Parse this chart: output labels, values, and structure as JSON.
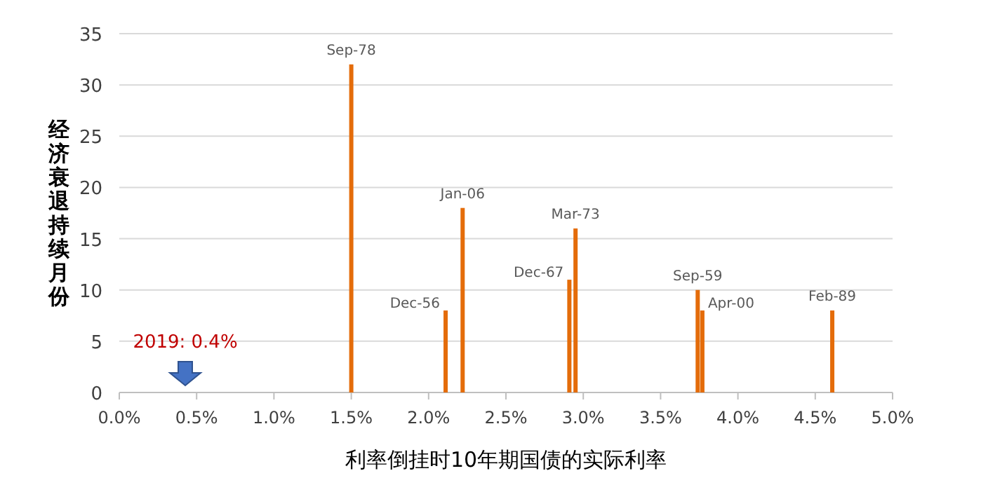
{
  "chart_data": {
    "type": "bar",
    "x": [
      1.5,
      2.11,
      2.22,
      2.91,
      2.95,
      3.74,
      3.77,
      4.61
    ],
    "values": [
      32,
      8,
      18,
      11,
      16,
      10,
      8,
      8
    ],
    "color": "#e46c0a",
    "xlim": [
      0,
      5
    ],
    "xticks": [
      {
        "value": 0,
        "label": "0.0%"
      },
      {
        "value": 0.5,
        "label": "0.5%"
      },
      {
        "value": 1,
        "label": "1.0%"
      },
      {
        "value": 1.5,
        "label": "1.5%"
      },
      {
        "value": 2,
        "label": "2.0%"
      },
      {
        "value": 2.5,
        "label": "2.5%"
      },
      {
        "value": 3,
        "label": "3.0%"
      },
      {
        "value": 3.5,
        "label": "3.5%"
      },
      {
        "value": 4,
        "label": "4.0%"
      },
      {
        "value": 4.5,
        "label": "4.5%"
      },
      {
        "value": 5,
        "label": "5.0%"
      }
    ],
    "ylim": [
      0,
      35
    ],
    "yticks": [
      0,
      5,
      10,
      15,
      20,
      25,
      30,
      35
    ],
    "grid": "y",
    "xlabel": "利率倒挂时10年期国债的实际利率",
    "ylabel": "经济衰退持续月份",
    "annotations": [
      {
        "text": "Sep-78",
        "x": 1.5,
        "y": 32
      },
      {
        "text": "Dec-56",
        "x": 2.11,
        "y": 8
      },
      {
        "text": "Jan-06",
        "x": 2.22,
        "y": 18
      },
      {
        "text": "Dec-67",
        "x": 2.91,
        "y": 11
      },
      {
        "text": "Mar-73",
        "x": 2.95,
        "y": 16
      },
      {
        "text": "Sep-59",
        "x": 3.74,
        "y": 10
      },
      {
        "text": "Apr-00",
        "x": 3.77,
        "y": 8
      },
      {
        "text": "Feb-89",
        "x": 4.61,
        "y": 8
      },
      "2019: 0.4%"
    ]
  }
}
